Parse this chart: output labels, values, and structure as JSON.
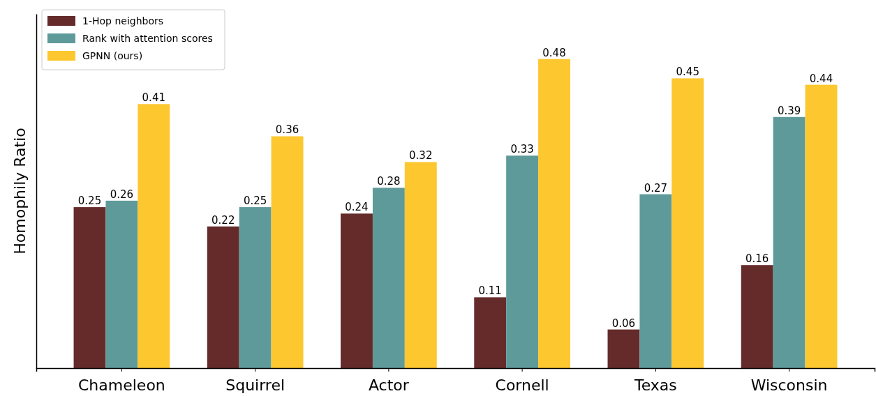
{
  "chart_data": {
    "type": "bar",
    "ylabel": "Homophily Ratio",
    "categories": [
      "Chameleon",
      "Squirrel",
      "Actor",
      "Cornell",
      "Texas",
      "Wisconsin"
    ],
    "series": [
      {
        "name": "1-Hop neighbors",
        "color": "#652b2b",
        "values": [
          0.25,
          0.22,
          0.24,
          0.11,
          0.06,
          0.16
        ]
      },
      {
        "name": "Rank with attention scores",
        "color": "#5f9a9a",
        "values": [
          0.26,
          0.25,
          0.28,
          0.33,
          0.27,
          0.39
        ]
      },
      {
        "name": "GPNN (ours)",
        "color": "#fdc72f",
        "values": [
          0.41,
          0.36,
          0.32,
          0.48,
          0.45,
          0.44
        ]
      }
    ],
    "ylim": [
      0,
      0.55
    ],
    "data_labels": true,
    "legend": "top left",
    "tick_labels": "x"
  }
}
